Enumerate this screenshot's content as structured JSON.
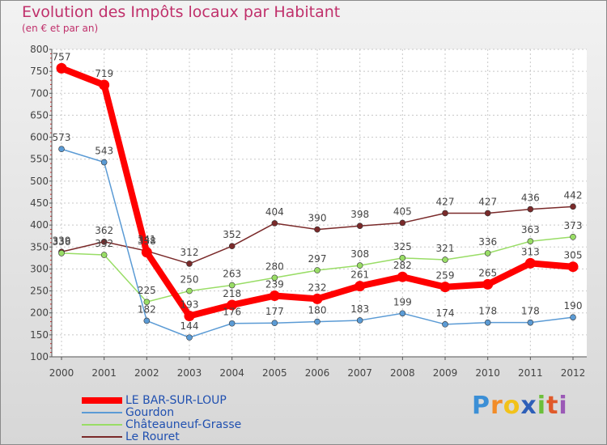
{
  "chart_data": {
    "type": "line",
    "title": "Evolution des Impôts locaux par Habitant",
    "subtitle": "(en € et par an)",
    "xlabel": "",
    "ylabel": "",
    "x": [
      "2000",
      "2001",
      "2002",
      "2003",
      "2004",
      "2005",
      "2006",
      "2007",
      "2008",
      "2009",
      "2010",
      "2011",
      "2012"
    ],
    "ylim": [
      100,
      800
    ],
    "yticks": [
      100,
      150,
      200,
      250,
      300,
      350,
      400,
      450,
      500,
      550,
      600,
      650,
      700,
      750,
      800
    ],
    "grid": true,
    "legend_position": "bottom-left",
    "series": [
      {
        "name": "LE BAR-SUR-LOUP",
        "color": "#ff0000",
        "values": [
          757,
          719,
          338,
          193,
          218,
          239,
          232,
          261,
          282,
          259,
          265,
          313,
          305
        ]
      },
      {
        "name": "Gourdon",
        "color": "#5b9bd5",
        "values": [
          573,
          543,
          182,
          144,
          176,
          177,
          180,
          183,
          199,
          174,
          178,
          178,
          190
        ]
      },
      {
        "name": "Châteauneuf-Grasse",
        "color": "#99dd66",
        "values": [
          336,
          332,
          225,
          250,
          263,
          280,
          297,
          308,
          325,
          321,
          336,
          363,
          373
        ]
      },
      {
        "name": "Le Rouret",
        "color": "#7a2a2a",
        "values": [
          339,
          362,
          341,
          312,
          352,
          404,
          390,
          398,
          405,
          427,
          427,
          436,
          442
        ]
      }
    ]
  },
  "logo": {
    "letters": [
      "P",
      "r",
      "o",
      "x",
      "i",
      "t",
      "i"
    ],
    "colors": [
      "#3b8fd6",
      "#f28c28",
      "#f2c21a",
      "#2e5fb8",
      "#6cbf3a",
      "#e05a2a",
      "#9b59b6"
    ]
  }
}
